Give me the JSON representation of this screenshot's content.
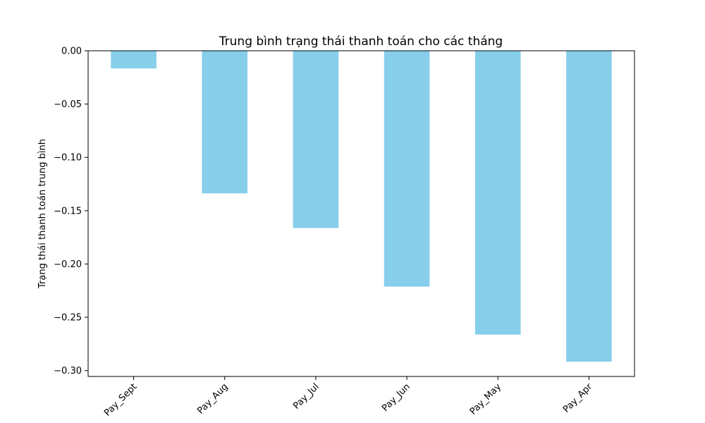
{
  "chart_data": {
    "type": "bar",
    "title": "Trung bình trạng thái thanh toán cho các tháng",
    "xlabel": "",
    "ylabel": "Trạng thái thanh toán trung bình",
    "categories": [
      "Pay_Sept",
      "Pay_Aug",
      "Pay_Jul",
      "Pay_Jun",
      "Pay_May",
      "Pay_Apr"
    ],
    "values": [
      -0.0166,
      -0.1338,
      -0.1662,
      -0.2212,
      -0.2662,
      -0.2916
    ],
    "ylim": [
      -0.3055,
      0.0
    ],
    "yticks": [
      0.0,
      -0.05,
      -0.1,
      -0.15,
      -0.2,
      -0.25,
      -0.3
    ],
    "ytick_labels": [
      "0.00",
      "−0.05",
      "−0.10",
      "−0.15",
      "−0.20",
      "−0.25",
      "−0.30"
    ],
    "bar_color": "#87ceeb",
    "grid": false,
    "legend": "none"
  }
}
